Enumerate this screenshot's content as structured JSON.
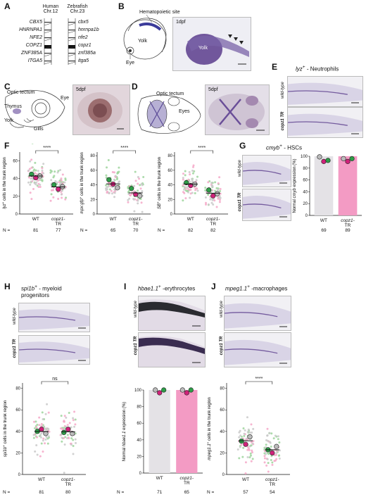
{
  "panelA": {
    "label": "A",
    "human_title1": "Human",
    "human_title2": "Chr.12",
    "zf_title1": "Zebrafish",
    "zf_title2": "Chr.23",
    "human_genes": [
      "CBX5",
      "HNRNPA1",
      "NFE2",
      "COPZ1",
      "ZNF385A",
      "ITGA5"
    ],
    "zf_genes": [
      "cbx5",
      "hnrnpa1b",
      "nfe2",
      "copz1",
      "znf385a",
      "itga5"
    ]
  },
  "panelB": {
    "label": "B",
    "site": "Hematopoietic site",
    "yolk": "Yolk",
    "eye": "Eye",
    "stage": "1dpf",
    "photo_yolk": "Yolk"
  },
  "panelC": {
    "label": "C",
    "optic": "Optic tectum",
    "eye": "Eye",
    "thymus": "Thymus",
    "yolk": "Yolk",
    "gills": "Gills",
    "stage": "5dpf"
  },
  "panelD": {
    "label": "D",
    "optic": "Optic tectum",
    "eyes": "Eyes",
    "stage": "5dpf"
  },
  "panelE": {
    "label": "E",
    "title_gene": "lyz",
    "title_sup": "+",
    "title_rest": " - Neutrophils",
    "wt": "wild-type",
    "mut": "copz1 TR",
    "scale": "100 µm"
  },
  "panelF": {
    "label": "F",
    "plots": [
      {
        "ylabel_gene": "lyz",
        "ylabel_sup": "+",
        "ylabel_rest": " cells in the trunk region",
        "sig": "****",
        "n_wt": "81",
        "n_mut": "77",
        "yticks": [
          "0",
          "20",
          "40",
          "60"
        ]
      },
      {
        "ylabel_gene": "mpx:gfp",
        "ylabel_sup": "+",
        "ylabel_rest": " cells in the trunk region",
        "sig": "****",
        "n_wt": "65",
        "n_mut": "70",
        "yticks": [
          "0",
          "20",
          "40",
          "60",
          "80"
        ]
      },
      {
        "ylabel_gene": "SB",
        "ylabel_sup": "+",
        "ylabel_rest": " cells in the trunk region",
        "sig": "****",
        "n_wt": "82",
        "n_mut": "82",
        "yticks": [
          "0",
          "20",
          "40",
          "60",
          "80"
        ]
      }
    ],
    "x_wt": "WT",
    "x_mut1": "copz1-",
    "x_mut2": "TR",
    "n_label": "N ="
  },
  "panelG": {
    "label": "G",
    "title_gene": "cmyb",
    "title_sup": "+",
    "title_rest": " - HSCs",
    "wt": "wild-type",
    "mut": "copz1 TR",
    "scale": "100 µm",
    "ylabel": "Normal cmyb expression (%)",
    "yticks": [
      "0",
      "20",
      "40",
      "60",
      "80",
      "100"
    ],
    "n_wt": "69",
    "n_mut": "89",
    "x_wt": "WT",
    "x_mut1": "copz1-",
    "x_mut2": "TR"
  },
  "panelH": {
    "label": "H",
    "title_gene": "spi1b",
    "title_sup": "+",
    "title_rest": " - myeloid",
    "title_line2": "progenitors",
    "wt": "wild-type",
    "mut": "copz1 TR",
    "scale": "100 µm",
    "ylabel_gene": "spi1b",
    "ylabel_sup": "+",
    "ylabel_rest": " cells in the trunk region",
    "sig": "ns",
    "yticks": [
      "0",
      "20",
      "40",
      "60",
      "80"
    ],
    "n_wt": "81",
    "n_mut": "80",
    "x_wt": "WT",
    "x_mut1": "copz1-",
    "x_mut2": "TR"
  },
  "panelI": {
    "label": "I",
    "title_gene": "hbae1.1",
    "title_sup": "+",
    "title_rest": " -erythrocytes",
    "wt": "wild-type",
    "mut": "copz1 TR",
    "scale": "100 µm",
    "ylabel": "Normal hbae1.1 expression (%)",
    "yticks": [
      "0",
      "20",
      "40",
      "60",
      "80",
      "100"
    ],
    "n_wt": "71",
    "n_mut": "65",
    "x_wt": "WT",
    "x_mut1": "copz1-",
    "x_mut2": "TR"
  },
  "panelJ": {
    "label": "J",
    "title_gene": "mpeg1.1",
    "title_sup": "+",
    "title_rest": " -macrophages",
    "wt": "wild-type",
    "mut": "copz1 TR",
    "scale": "100 µm",
    "ylabel_gene": "mpeg1.1",
    "ylabel_sup": "+",
    "ylabel_rest": " cells in the trunk region",
    "sig": "****",
    "yticks": [
      "0",
      "20",
      "40",
      "60",
      "80"
    ],
    "n_wt": "57",
    "n_mut": "54",
    "x_wt": "WT",
    "x_mut1": "copz1-",
    "x_mut2": "TR"
  },
  "colors": {
    "green": "#2e9d48",
    "magenta": "#d0217a",
    "lightgreen": "#9ed59c",
    "pink": "#f5a8c8",
    "grey": "#c9c9c9",
    "bar_wt": "#e4e2e6",
    "bar_mut": "#f39bc4",
    "stain": "#5a3c8c"
  },
  "chart_data": [
    {
      "type": "scatter",
      "panel": "F1",
      "categories": [
        "WT",
        "copz1-TR"
      ],
      "superplot_means": [
        [
          45,
          41,
          43
        ],
        [
          33,
          28,
          31
        ]
      ],
      "ylim": [
        0,
        70
      ]
    },
    {
      "type": "scatter",
      "panel": "F2",
      "categories": [
        "WT",
        "copz1-TR"
      ],
      "superplot_means": [
        [
          47,
          41,
          36
        ],
        [
          35,
          27,
          25
        ]
      ],
      "ylim": [
        0,
        85
      ]
    },
    {
      "type": "scatter",
      "panel": "F3",
      "categories": [
        "WT",
        "copz1-TR"
      ],
      "superplot_means": [
        [
          43,
          39,
          41
        ],
        [
          33,
          25,
          28
        ]
      ],
      "ylim": [
        0,
        85
      ]
    },
    {
      "type": "bar",
      "panel": "G",
      "categories": [
        "WT",
        "copz1-TR"
      ],
      "values": [
        100,
        100
      ],
      "replicates": [
        [
          99,
          96,
          93
        ],
        [
          96,
          96,
          96
        ]
      ],
      "ylim": [
        0,
        100
      ]
    },
    {
      "type": "scatter",
      "panel": "H",
      "categories": [
        "WT",
        "copz1-TR"
      ],
      "superplot_means": [
        [
          40,
          42,
          38
        ],
        [
          39,
          42,
          38
        ]
      ],
      "ylim": [
        0,
        85
      ]
    },
    {
      "type": "bar",
      "panel": "I",
      "categories": [
        "WT",
        "copz1-TR"
      ],
      "values": [
        100,
        100
      ],
      "replicates": [
        [
          100,
          100,
          100
        ],
        [
          100,
          100,
          100
        ]
      ],
      "ylim": [
        0,
        100
      ]
    },
    {
      "type": "scatter",
      "panel": "J",
      "categories": [
        "WT",
        "copz1-TR"
      ],
      "superplot_means": [
        [
          31,
          28,
          35
        ],
        [
          23,
          20,
          26
        ]
      ],
      "ylim": [
        0,
        85
      ]
    }
  ]
}
